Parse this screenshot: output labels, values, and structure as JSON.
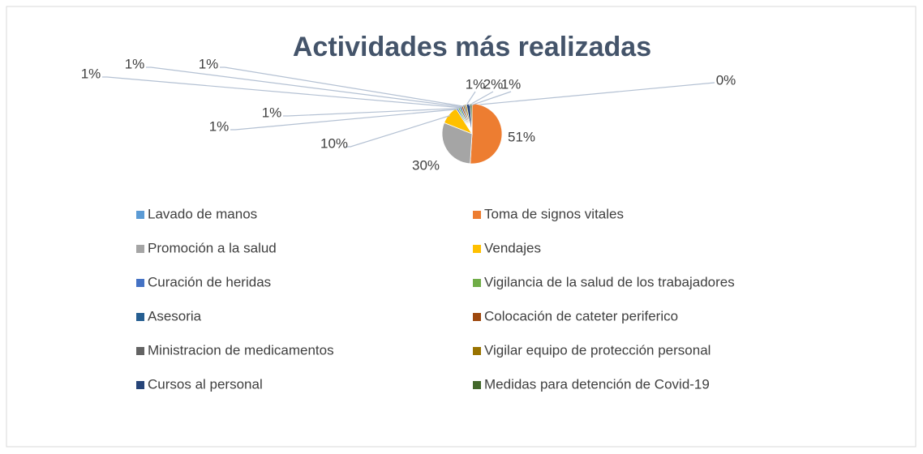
{
  "chart_data": {
    "type": "pie",
    "title": "Actividades más realizadas",
    "categories": [
      "Lavado de manos",
      "Toma de signos vitales",
      "Promoción a la salud",
      "Vendajes",
      "Curación de heridas",
      "Vigilancia de la salud de los trabajadores",
      "Asesoria",
      "Colocación de cateter periferico",
      "Ministracion de medicamentos",
      "Vigilar equipo de protección personal",
      "Cursos al personal",
      "Medidas para detención de Covid-19"
    ],
    "values": [
      0,
      51,
      30,
      10,
      1,
      1,
      1,
      1,
      1,
      1,
      2,
      1
    ],
    "value_labels": [
      "0%",
      "51%",
      "30%",
      "10%",
      "1%",
      "1%",
      "1%",
      "1%",
      "1%",
      "1%",
      "2%",
      "1%"
    ],
    "colors": [
      "#5b9bd5",
      "#ed7d31",
      "#a5a5a5",
      "#ffc000",
      "#4472c4",
      "#70ad47",
      "#255e91",
      "#9e480e",
      "#636363",
      "#997300",
      "#264478",
      "#43682b"
    ],
    "legend": "bottom"
  }
}
